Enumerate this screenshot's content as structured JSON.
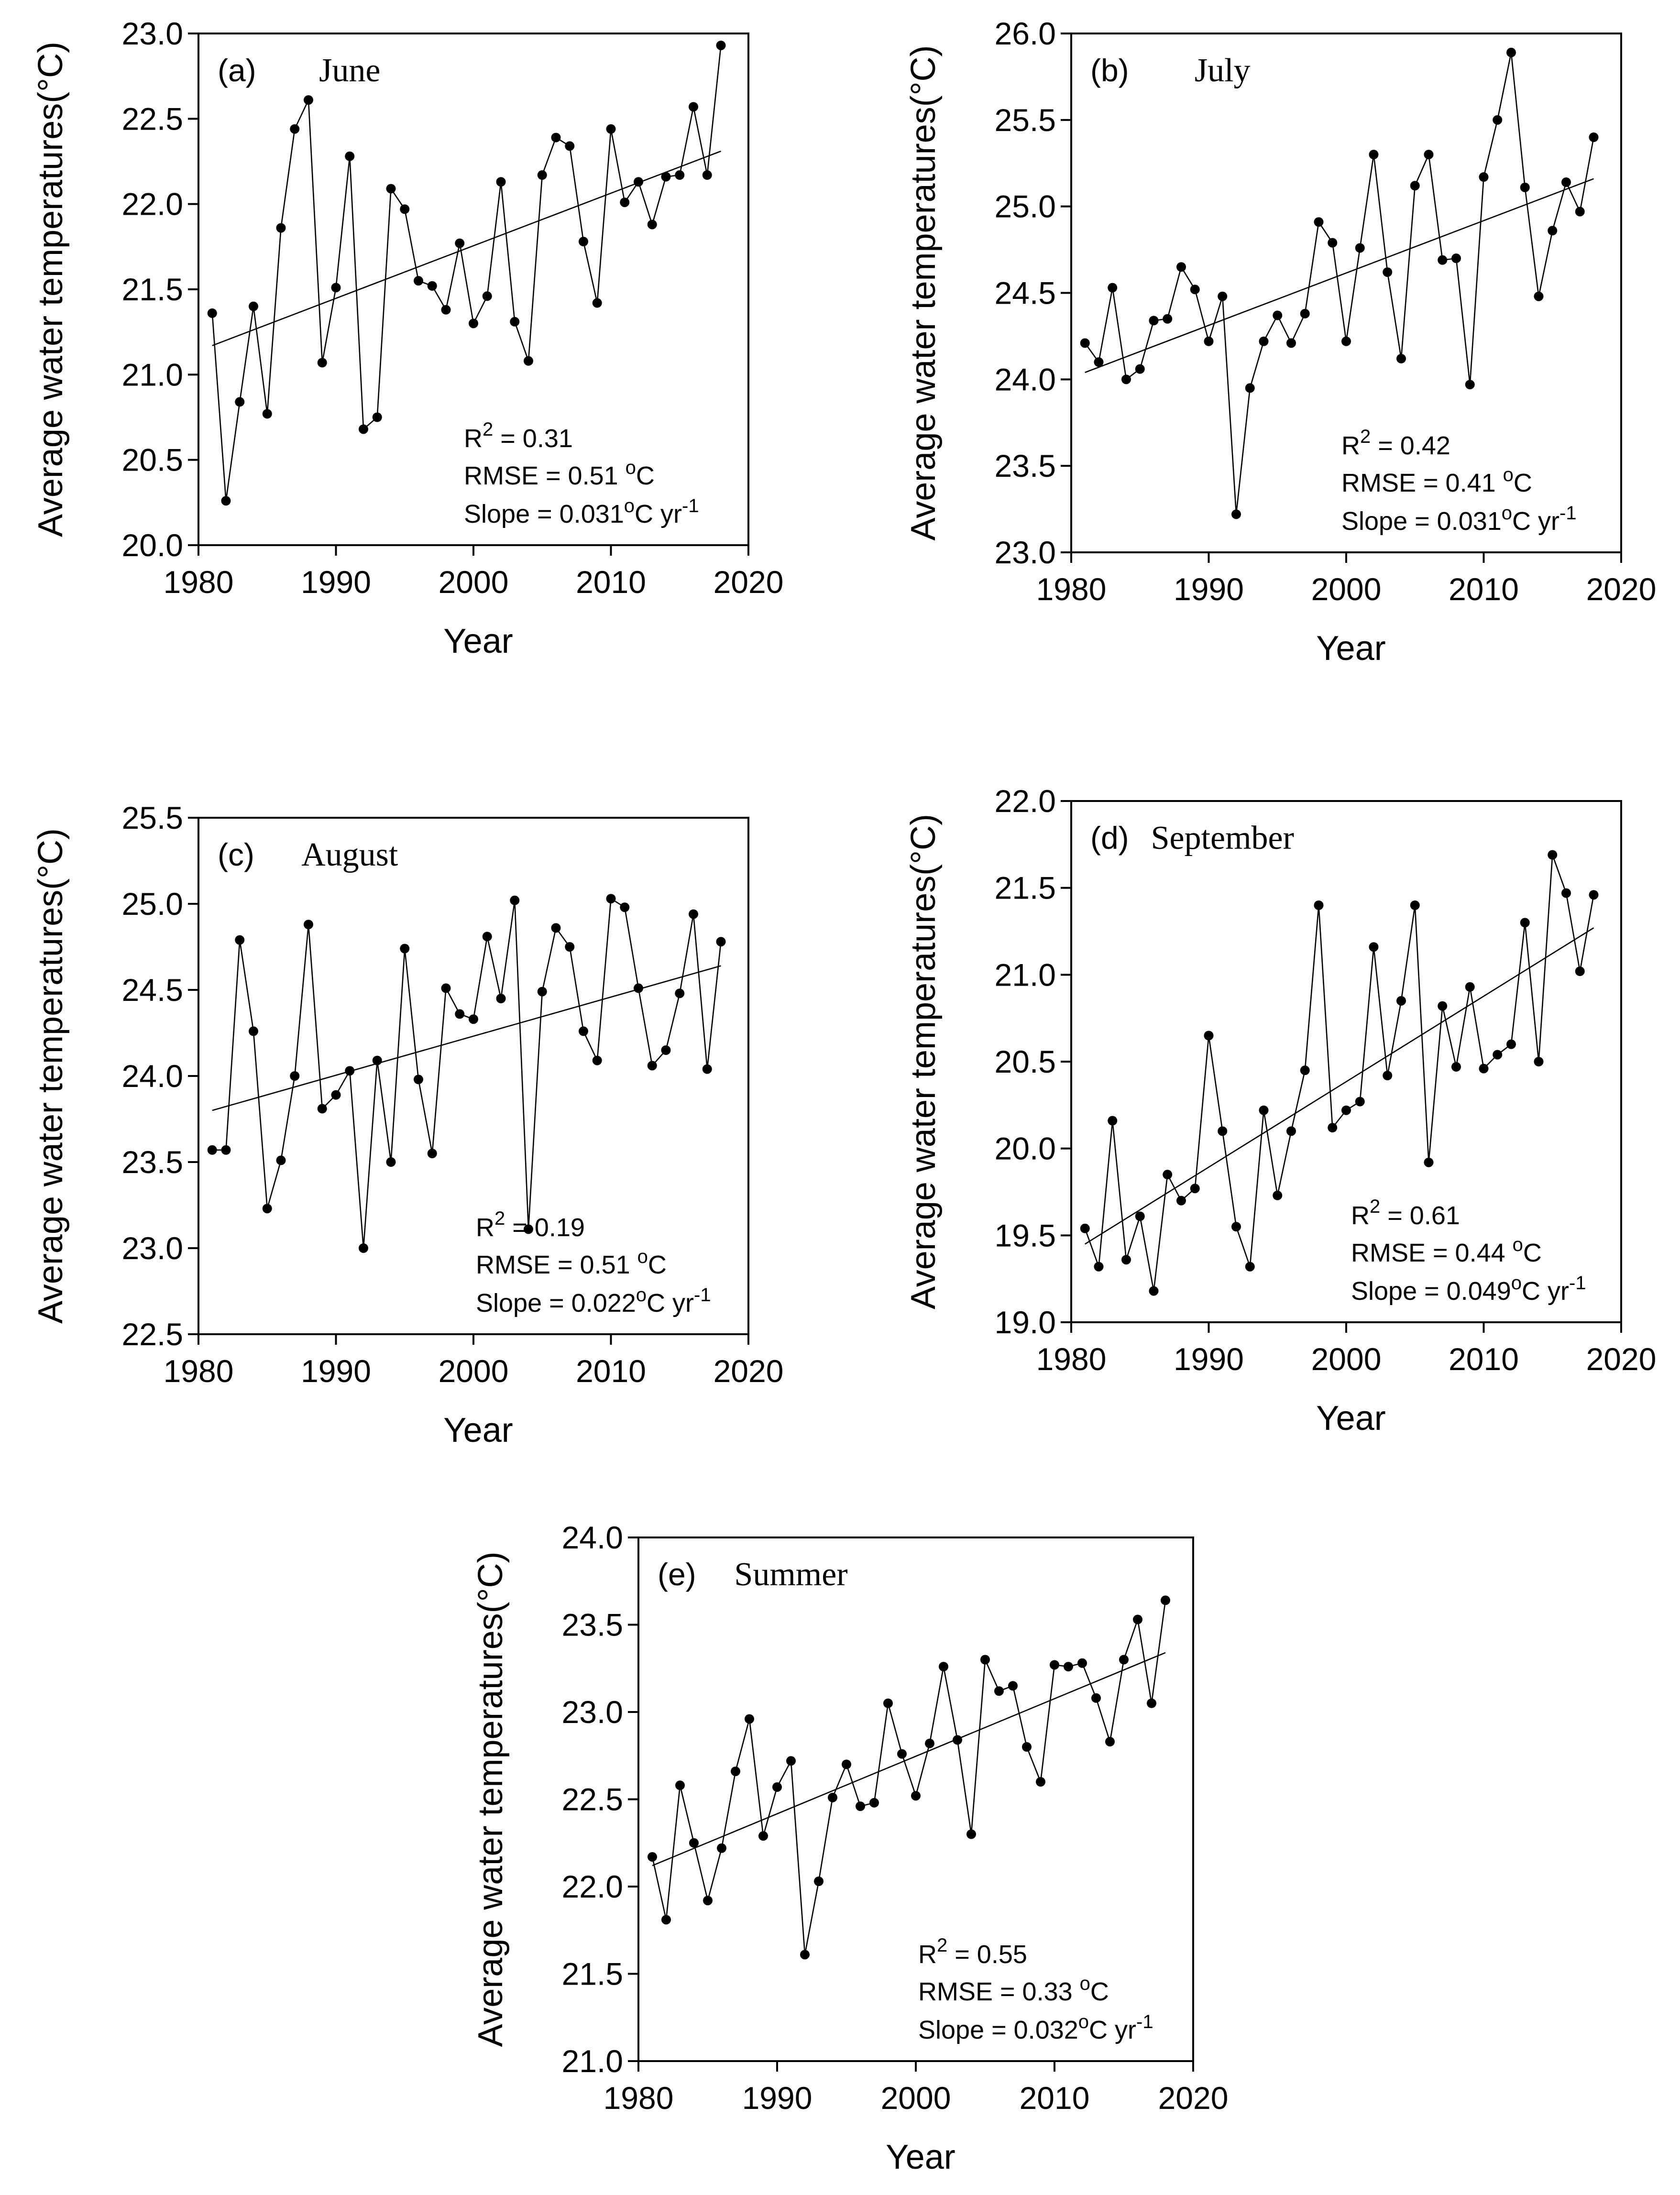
{
  "figure": {
    "xlabel": "Year",
    "ylabel": "Average water temperatures(°C)"
  },
  "chart_data": [
    {
      "type": "line",
      "panel_label": "(a)",
      "title": "June",
      "xlabel": "Year",
      "ylabel": "Average water temperatures(°C)",
      "xlim": [
        1980,
        2020
      ],
      "ylim": [
        20.0,
        23.0
      ],
      "xticks": [
        1980,
        1990,
        2000,
        2010,
        2020
      ],
      "yticks": [
        "20.0",
        "20.5",
        "21.0",
        "21.5",
        "22.0",
        "22.5",
        "23.0"
      ],
      "x": [
        1981,
        1982,
        1983,
        1984,
        1985,
        1986,
        1987,
        1988,
        1989,
        1990,
        1991,
        1992,
        1993,
        1994,
        1995,
        1996,
        1997,
        1998,
        1999,
        2000,
        2001,
        2002,
        2003,
        2004,
        2005,
        2006,
        2007,
        2008,
        2009,
        2010,
        2011,
        2012,
        2013,
        2014,
        2015,
        2016,
        2017,
        2018
      ],
      "values": [
        21.36,
        20.26,
        20.84,
        21.4,
        20.77,
        21.86,
        22.44,
        22.61,
        21.07,
        21.51,
        22.28,
        20.68,
        20.75,
        22.09,
        21.97,
        21.55,
        21.52,
        21.38,
        21.77,
        21.3,
        21.46,
        22.13,
        21.31,
        21.08,
        22.17,
        22.39,
        22.34,
        21.78,
        21.42,
        22.44,
        22.01,
        22.13,
        21.88,
        22.16,
        22.17,
        22.57,
        22.17,
        22.93
      ],
      "trend": {
        "start": [
          1981,
          21.17
        ],
        "end": [
          2018,
          22.31
        ]
      },
      "r2_prefix": "R",
      "r2_sup": "2",
      "r2_value": " = 0.31",
      "rmse_text": "RMSE = 0.51 ",
      "rmse_unit_sup": "o",
      "rmse_unit": "C",
      "slope_text": "Slope = 0.031",
      "slope_unit_sup": "o",
      "slope_unit": "C yr",
      "slope_exp": "-1"
    },
    {
      "type": "line",
      "panel_label": "(b)",
      "title": "July",
      "xlabel": "Year",
      "ylabel": "Average water temperatures(°C)",
      "xlim": [
        1980,
        2020
      ],
      "ylim": [
        23.0,
        26.0
      ],
      "xticks": [
        1980,
        1990,
        2000,
        2010,
        2020
      ],
      "yticks": [
        "23.0",
        "23.5",
        "24.0",
        "24.5",
        "25.0",
        "25.5",
        "26.0"
      ],
      "x": [
        1981,
        1982,
        1983,
        1984,
        1985,
        1986,
        1987,
        1988,
        1989,
        1990,
        1991,
        1992,
        1993,
        1994,
        1995,
        1996,
        1997,
        1998,
        1999,
        2000,
        2001,
        2002,
        2003,
        2004,
        2005,
        2006,
        2007,
        2008,
        2009,
        2010,
        2011,
        2012,
        2013,
        2014,
        2015,
        2016,
        2017,
        2018
      ],
      "values": [
        24.21,
        24.1,
        24.53,
        24.0,
        24.06,
        24.34,
        24.35,
        24.65,
        24.52,
        24.22,
        24.48,
        23.22,
        23.95,
        24.22,
        24.37,
        24.21,
        24.38,
        24.91,
        24.79,
        24.22,
        24.76,
        25.3,
        24.62,
        24.12,
        25.12,
        25.3,
        24.69,
        24.7,
        23.97,
        25.17,
        25.5,
        25.89,
        25.11,
        24.48,
        24.86,
        25.14,
        24.97,
        25.4
      ],
      "trend": {
        "start": [
          1981,
          24.04
        ],
        "end": [
          2018,
          25.16
        ]
      },
      "r2_prefix": "R",
      "r2_sup": "2",
      "r2_value": " = 0.42",
      "rmse_text": "RMSE = 0.41 ",
      "rmse_unit_sup": "o",
      "rmse_unit": "C",
      "slope_text": "Slope = 0.031",
      "slope_unit_sup": "o",
      "slope_unit": "C yr",
      "slope_exp": "-1"
    },
    {
      "type": "line",
      "panel_label": "(c)",
      "title": "August",
      "xlabel": "Year",
      "ylabel": "Average water temperatures(°C)",
      "xlim": [
        1980,
        2020
      ],
      "ylim": [
        22.5,
        25.5
      ],
      "xticks": [
        1980,
        1990,
        2000,
        2010,
        2020
      ],
      "yticks": [
        "22.5",
        "23.0",
        "23.5",
        "24.0",
        "24.5",
        "25.0",
        "25.5"
      ],
      "x": [
        1981,
        1982,
        1983,
        1984,
        1985,
        1986,
        1987,
        1988,
        1989,
        1990,
        1991,
        1992,
        1993,
        1994,
        1995,
        1996,
        1997,
        1998,
        1999,
        2000,
        2001,
        2002,
        2003,
        2004,
        2005,
        2006,
        2007,
        2008,
        2009,
        2010,
        2011,
        2012,
        2013,
        2014,
        2015,
        2016,
        2017,
        2018
      ],
      "values": [
        23.57,
        23.57,
        24.79,
        24.26,
        23.23,
        23.51,
        24.0,
        24.88,
        23.81,
        23.89,
        24.03,
        23.0,
        24.09,
        23.5,
        24.74,
        23.98,
        23.55,
        24.51,
        24.36,
        24.33,
        24.81,
        24.45,
        25.02,
        23.11,
        24.49,
        24.86,
        24.75,
        24.26,
        24.09,
        25.03,
        24.98,
        24.51,
        24.06,
        24.15,
        24.48,
        24.94,
        24.04,
        24.78
      ],
      "trend": {
        "start": [
          1981,
          23.8
        ],
        "end": [
          2018,
          24.64
        ]
      },
      "r2_prefix": "R",
      "r2_sup": "2",
      "r2_value": " = 0.19",
      "rmse_text": "RMSE = 0.51 ",
      "rmse_unit_sup": "o",
      "rmse_unit": "C",
      "slope_text": "Slope = 0.022",
      "slope_unit_sup": "o",
      "slope_unit": "C yr",
      "slope_exp": "-1"
    },
    {
      "type": "line",
      "panel_label": "(d)",
      "title": "September",
      "xlabel": "Year",
      "ylabel": "Average water temperatures(°C)",
      "xlim": [
        1980,
        2020
      ],
      "ylim": [
        19.0,
        22.0
      ],
      "xticks": [
        1980,
        1990,
        2000,
        2010,
        2020
      ],
      "yticks": [
        "19.0",
        "19.5",
        "20.0",
        "20.5",
        "21.0",
        "21.5",
        "22.0"
      ],
      "x": [
        1981,
        1982,
        1983,
        1984,
        1985,
        1986,
        1987,
        1988,
        1989,
        1990,
        1991,
        1992,
        1993,
        1994,
        1995,
        1996,
        1997,
        1998,
        1999,
        2000,
        2001,
        2002,
        2003,
        2004,
        2005,
        2006,
        2007,
        2008,
        2009,
        2010,
        2011,
        2012,
        2013,
        2014,
        2015,
        2016,
        2017,
        2018
      ],
      "values": [
        19.54,
        19.32,
        20.16,
        19.36,
        19.61,
        19.18,
        19.85,
        19.7,
        19.77,
        20.65,
        20.1,
        19.55,
        19.32,
        20.22,
        19.73,
        20.1,
        20.45,
        21.4,
        20.12,
        20.22,
        20.27,
        21.16,
        20.42,
        20.85,
        21.4,
        19.92,
        20.82,
        20.47,
        20.93,
        20.46,
        20.54,
        20.6,
        21.3,
        20.5,
        21.69,
        21.47,
        21.02,
        21.46
      ],
      "trend": {
        "start": [
          1981,
          19.45
        ],
        "end": [
          2018,
          21.27
        ]
      },
      "r2_prefix": "R",
      "r2_sup": "2",
      "r2_value": " = 0.61",
      "rmse_text": "RMSE = 0.44 ",
      "rmse_unit_sup": "o",
      "rmse_unit": "C",
      "slope_text": "Slope = 0.049",
      "slope_unit_sup": "o",
      "slope_unit": "C yr",
      "slope_exp": "-1"
    },
    {
      "type": "line",
      "panel_label": "(e)",
      "title": "Summer",
      "xlabel": "Year",
      "ylabel": "Average water temperatures(°C)",
      "xlim": [
        1980,
        2020
      ],
      "ylim": [
        21.0,
        24.0
      ],
      "xticks": [
        1980,
        1990,
        2000,
        2010,
        2020
      ],
      "yticks": [
        "21.0",
        "21.5",
        "22.0",
        "22.5",
        "23.0",
        "23.5",
        "24.0"
      ],
      "x": [
        1981,
        1982,
        1983,
        1984,
        1985,
        1986,
        1987,
        1988,
        1989,
        1990,
        1991,
        1992,
        1993,
        1994,
        1995,
        1996,
        1997,
        1998,
        1999,
        2000,
        2001,
        2002,
        2003,
        2004,
        2005,
        2006,
        2007,
        2008,
        2009,
        2010,
        2011,
        2012,
        2013,
        2014,
        2015,
        2016,
        2017,
        2018
      ],
      "values": [
        22.17,
        21.81,
        22.58,
        22.25,
        21.92,
        22.22,
        22.66,
        22.96,
        22.29,
        22.57,
        22.72,
        21.61,
        22.03,
        22.51,
        22.7,
        22.46,
        22.48,
        23.05,
        22.76,
        22.52,
        22.82,
        23.26,
        22.84,
        22.3,
        23.3,
        23.12,
        23.15,
        22.8,
        22.6,
        23.27,
        23.26,
        23.28,
        23.08,
        22.83,
        23.3,
        23.53,
        23.05,
        23.64
      ],
      "trend": {
        "start": [
          1981,
          22.12
        ],
        "end": [
          2018,
          23.34
        ]
      },
      "r2_prefix": "R",
      "r2_sup": "2",
      "r2_value": " = 0.55",
      "rmse_text": "RMSE = 0.33 ",
      "rmse_unit_sup": "o",
      "rmse_unit": "C",
      "slope_text": "Slope = 0.032",
      "slope_unit_sup": "o",
      "slope_unit": "C yr",
      "slope_exp": "-1"
    }
  ]
}
